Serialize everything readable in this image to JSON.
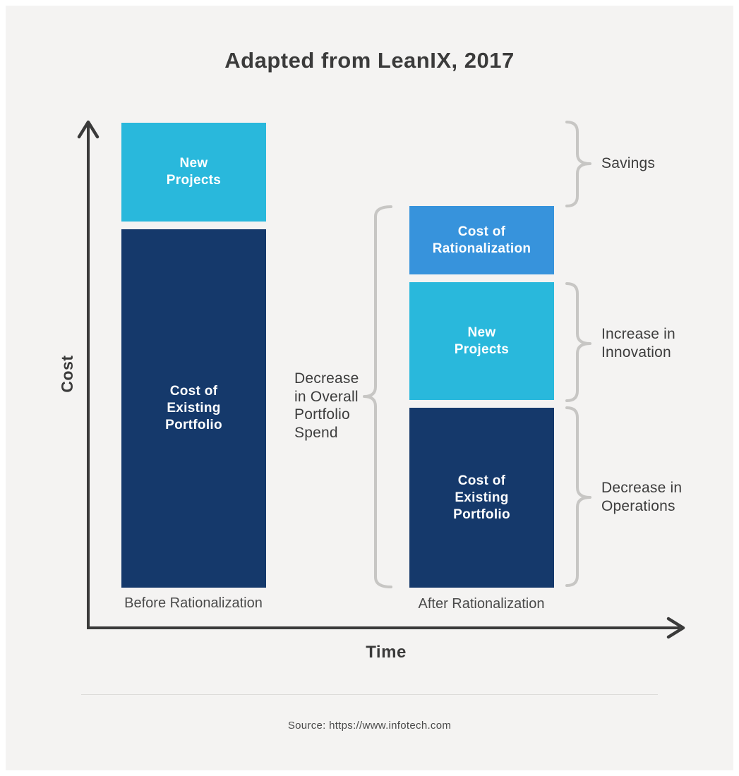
{
  "title": "Adapted from LeanIX, 2017",
  "axes": {
    "y_label": "Cost",
    "x_label": "Time"
  },
  "footer": {
    "source": "Source: https://www.infotech.com"
  },
  "colors": {
    "background": "#ffffff",
    "panel": "#f4f3f2",
    "navy": "#15396b",
    "cyan": "#29b8dc",
    "blue": "#3793dc",
    "axis": "#3a3a3a",
    "brace": "#c7c6c4",
    "segment_text": "#ffffff",
    "text": "#3d3d3d"
  },
  "chart_data": {
    "type": "bar",
    "stacked": true,
    "title": "Adapted from LeanIX, 2017",
    "xlabel": "Time",
    "ylabel": "Cost",
    "numeric_axis": false,
    "value_note": "Qualitative concept chart; values are relative segment heights (screenshot px), no numeric scale shown",
    "categories": [
      "Before Rationalization",
      "After Rationalization"
    ],
    "series": [
      {
        "name": "Cost of Existing Portfolio",
        "display_label": "Cost of\nExisting\nPortfolio",
        "color": "#15396b",
        "values": [
          508,
          255
        ]
      },
      {
        "name": "New Projects",
        "display_label": "New\nProjects",
        "color": "#29b8dc",
        "values": [
          140,
          167
        ]
      },
      {
        "name": "Cost of Rationalization",
        "display_label": "Cost of\nRationalization",
        "color": "#3793dc",
        "values": [
          null,
          97
        ]
      }
    ],
    "annotations": [
      {
        "label": "Savings",
        "side": "right",
        "refers_to": "Gap between before-bar total height and after-bar total height"
      },
      {
        "label": "Increase in Innovation",
        "side": "right",
        "refers_to": "New Projects segment of after-rationalization bar"
      },
      {
        "label": "Decrease in Operations",
        "side": "right",
        "refers_to": "Cost of Existing Portfolio segment of after-rationalization bar"
      },
      {
        "label": "Decrease in Overall Portfolio Spend",
        "side": "left",
        "refers_to": "Entire after-rationalization bar"
      }
    ],
    "legend": "none (segments labeled inline)"
  }
}
